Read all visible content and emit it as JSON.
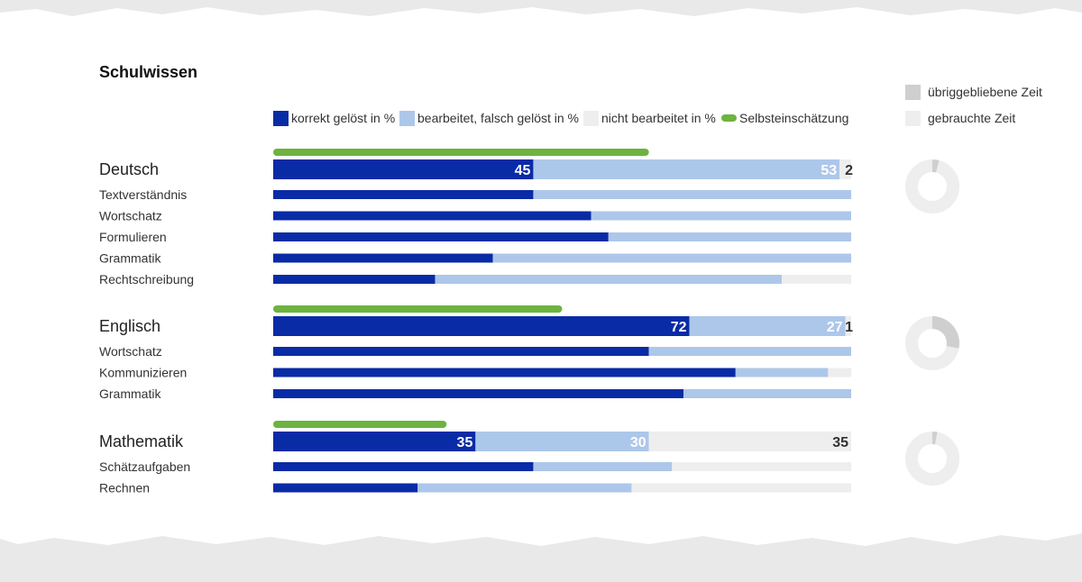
{
  "title": "Schulwissen",
  "legend": {
    "correct": "korrekt gelöst in %",
    "wrong": "bearbeitet, falsch gelöst in %",
    "none": "nicht bearbeitet in %",
    "self": "Selbsteinschätzung"
  },
  "time_legend": {
    "remaining": "übriggebliebene Zeit",
    "used": "gebrauchte Zeit"
  },
  "colors": {
    "correct": "#0a2ba6",
    "wrong": "#adc7ea",
    "none": "#eeeeee",
    "self": "#6db33f",
    "remaining": "#cfcfcf",
    "used": "#eeeeee"
  },
  "chart_data": {
    "type": "bar",
    "stacked": true,
    "xlim": [
      0,
      100
    ],
    "unit": "%",
    "series_names": [
      "korrekt gelöst in %",
      "bearbeitet, falsch gelöst in %",
      "nicht bearbeitet in %"
    ],
    "subjects": [
      {
        "name": "Deutsch",
        "self_estimate": 65,
        "values": [
          45,
          53,
          2
        ],
        "labels": [
          "45",
          "53",
          "2"
        ],
        "time_remaining": 4,
        "subcategories": [
          {
            "name": "Textverständnis",
            "values": [
              45,
              55,
              0
            ]
          },
          {
            "name": "Wortschatz",
            "values": [
              55,
              45,
              0
            ]
          },
          {
            "name": "Formulieren",
            "values": [
              58,
              42,
              0
            ]
          },
          {
            "name": "Grammatik",
            "values": [
              38,
              62,
              0
            ]
          },
          {
            "name": "Rechtschreibung",
            "values": [
              28,
              60,
              12
            ]
          }
        ]
      },
      {
        "name": "Englisch",
        "self_estimate": 50,
        "values": [
          72,
          27,
          1
        ],
        "labels": [
          "72",
          "27",
          "1"
        ],
        "time_remaining": 28,
        "subcategories": [
          {
            "name": "Wortschatz",
            "values": [
              65,
              35,
              0
            ]
          },
          {
            "name": "Kommunizieren",
            "values": [
              80,
              16,
              4
            ]
          },
          {
            "name": "Grammatik",
            "values": [
              71,
              29,
              0
            ]
          }
        ]
      },
      {
        "name": "Mathematik",
        "self_estimate": 30,
        "values": [
          35,
          30,
          35
        ],
        "labels": [
          "35",
          "30",
          "35"
        ],
        "time_remaining": 3,
        "subcategories": [
          {
            "name": "Schätzaufgaben",
            "values": [
              45,
              24,
              31
            ]
          },
          {
            "name": "Rechnen",
            "values": [
              25,
              37,
              38
            ]
          }
        ]
      }
    ]
  }
}
